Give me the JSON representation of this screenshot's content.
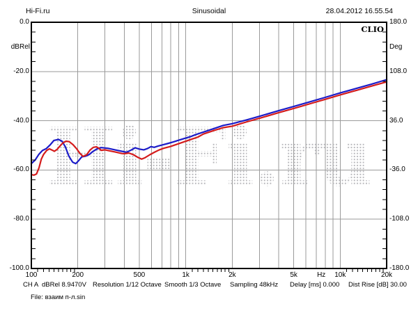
{
  "header": {
    "site": "Hi-Fi.ru",
    "title": "Sinusoidal",
    "datetime": "28.04.2012 16.55.54"
  },
  "plot": {
    "logo": "CLIO",
    "watermark": "Hi-Fi.ru"
  },
  "status": {
    "channel": "CH A",
    "level": "dBRel 8.9470V",
    "resolution": "Resolution 1/12 Octave",
    "smooth": "Smooth 1/3 Octave",
    "sampling": "Sampling 48kHz",
    "delay": "Delay [ms] 0.000",
    "dist_rise": "Dist Rise [dB] 30.00"
  },
  "file_line": "File: взаим п-л.sin",
  "colors": {
    "series_blue": "#1c1cc8",
    "series_red": "#d41c1c",
    "grid": "#9a9a9a",
    "watermark_dot": "#b4b4b8",
    "frame": "#000000"
  },
  "chart_data": {
    "type": "line",
    "title": "Sinusoidal",
    "xlabel": "Hz",
    "x_axis": {
      "scale": "log",
      "min": 100,
      "max": 20000,
      "unit": "Hz",
      "ticks": [
        {
          "label": "100",
          "f": 100
        },
        {
          "label": "200",
          "f": 200
        },
        {
          "label": "500",
          "f": 500
        },
        {
          "label": "1k",
          "f": 1000
        },
        {
          "label": "2k",
          "f": 2000
        },
        {
          "label": "5k",
          "f": 5000
        },
        {
          "label": "Hz",
          "f": 7550
        },
        {
          "label": "10k",
          "f": 10000
        },
        {
          "label": "20k",
          "f": 20000
        }
      ],
      "gridlines": [
        200,
        300,
        400,
        500,
        600,
        700,
        800,
        900,
        1000,
        2000,
        3000,
        4000,
        5000,
        6000,
        7000,
        8000,
        9000,
        10000
      ],
      "minor_ticks": [
        110,
        120,
        130,
        140,
        150,
        160,
        170,
        180,
        190,
        1100,
        1200,
        1300,
        1400,
        1500,
        1600,
        1700,
        1800,
        1900,
        11000,
        12000,
        13000,
        14000,
        15000,
        16000,
        17000,
        18000,
        19000
      ]
    },
    "y_left": {
      "label": "dBRel",
      "min": -100,
      "max": 0,
      "tick_labels": [
        "0.0",
        "-20.0",
        "-40.0",
        "-60.0",
        "-80.0",
        "-100.0"
      ],
      "gridlines": [
        -20,
        -40,
        -60,
        -80
      ],
      "minor_step": 4
    },
    "y_right": {
      "label": "Deg",
      "min": -180,
      "max": 180,
      "tick_labels": [
        "180.0",
        "108.0",
        "36.0",
        "-36.0",
        "-108.0",
        "-180.0"
      ]
    },
    "series": [
      {
        "name": "channel-a-blue",
        "color": "#1c1cc8",
        "points": [
          [
            100,
            -57.4
          ],
          [
            106,
            -55.9
          ],
          [
            112,
            -53.6
          ],
          [
            118,
            -52.1
          ],
          [
            125,
            -51.3
          ],
          [
            132,
            -49.9
          ],
          [
            140,
            -48.0
          ],
          [
            150,
            -47.6
          ],
          [
            158,
            -48.3
          ],
          [
            166,
            -50.6
          ],
          [
            175,
            -54.4
          ],
          [
            185,
            -56.8
          ],
          [
            194,
            -57.4
          ],
          [
            203,
            -56.1
          ],
          [
            212,
            -54.7
          ],
          [
            224,
            -54.4
          ],
          [
            237,
            -53.7
          ],
          [
            250,
            -52.5
          ],
          [
            265,
            -51.5
          ],
          [
            283,
            -50.9
          ],
          [
            313,
            -51.2
          ],
          [
            348,
            -51.8
          ],
          [
            385,
            -52.4
          ],
          [
            414,
            -52.8
          ],
          [
            443,
            -51.9
          ],
          [
            470,
            -51.0
          ],
          [
            500,
            -51.5
          ],
          [
            535,
            -51.8
          ],
          [
            565,
            -51.3
          ],
          [
            595,
            -50.5
          ],
          [
            625,
            -50.8
          ],
          [
            660,
            -50.3
          ],
          [
            700,
            -49.9
          ],
          [
            760,
            -49.3
          ],
          [
            820,
            -48.7
          ],
          [
            900,
            -47.9
          ],
          [
            980,
            -47.2
          ],
          [
            1070,
            -46.5
          ],
          [
            1150,
            -45.7
          ],
          [
            1300,
            -44.6
          ],
          [
            1500,
            -43.3
          ],
          [
            1750,
            -41.9
          ],
          [
            2000,
            -41.2
          ],
          [
            2500,
            -39.6
          ],
          [
            3000,
            -38.2
          ],
          [
            4000,
            -35.9
          ],
          [
            5000,
            -34.2
          ],
          [
            6300,
            -32.4
          ],
          [
            8000,
            -30.5
          ],
          [
            10000,
            -28.7
          ],
          [
            12500,
            -27.0
          ],
          [
            16000,
            -25.1
          ],
          [
            20000,
            -23.3
          ]
        ]
      },
      {
        "name": "channel-a-red",
        "color": "#d41c1c",
        "points": [
          [
            100,
            -61.9
          ],
          [
            104,
            -62.1
          ],
          [
            108,
            -61.6
          ],
          [
            112,
            -59.2
          ],
          [
            116,
            -55.6
          ],
          [
            120,
            -53.7
          ],
          [
            126,
            -52.0
          ],
          [
            131,
            -51.4
          ],
          [
            136,
            -51.9
          ],
          [
            141,
            -52.4
          ],
          [
            147,
            -51.6
          ],
          [
            153,
            -50.3
          ],
          [
            160,
            -49.0
          ],
          [
            168,
            -48.3
          ],
          [
            176,
            -48.5
          ],
          [
            186,
            -49.7
          ],
          [
            196,
            -51.3
          ],
          [
            206,
            -53.2
          ],
          [
            216,
            -54.5
          ],
          [
            228,
            -53.8
          ],
          [
            240,
            -51.9
          ],
          [
            252,
            -50.8
          ],
          [
            264,
            -50.6
          ],
          [
            274,
            -51.2
          ],
          [
            283,
            -52.0
          ],
          [
            300,
            -51.8
          ],
          [
            320,
            -52.2
          ],
          [
            350,
            -52.7
          ],
          [
            385,
            -53.3
          ],
          [
            400,
            -53.4
          ],
          [
            428,
            -53.1
          ],
          [
            459,
            -53.8
          ],
          [
            490,
            -54.9
          ],
          [
            518,
            -55.6
          ],
          [
            545,
            -55.0
          ],
          [
            585,
            -53.8
          ],
          [
            627,
            -52.8
          ],
          [
            670,
            -51.9
          ],
          [
            718,
            -51.2
          ],
          [
            800,
            -50.4
          ],
          [
            890,
            -49.4
          ],
          [
            980,
            -48.5
          ],
          [
            1090,
            -47.5
          ],
          [
            1200,
            -46.6
          ],
          [
            1300,
            -45.4
          ],
          [
            1500,
            -44.1
          ],
          [
            1750,
            -42.8
          ],
          [
            2000,
            -42.2
          ],
          [
            2500,
            -40.4
          ],
          [
            3000,
            -39.0
          ],
          [
            4000,
            -36.7
          ],
          [
            5000,
            -35.0
          ],
          [
            6300,
            -33.2
          ],
          [
            8000,
            -31.3
          ],
          [
            10000,
            -29.5
          ],
          [
            12500,
            -27.8
          ],
          [
            16000,
            -25.9
          ],
          [
            20000,
            -24.2
          ]
        ]
      }
    ],
    "legend": null,
    "grid": true
  }
}
